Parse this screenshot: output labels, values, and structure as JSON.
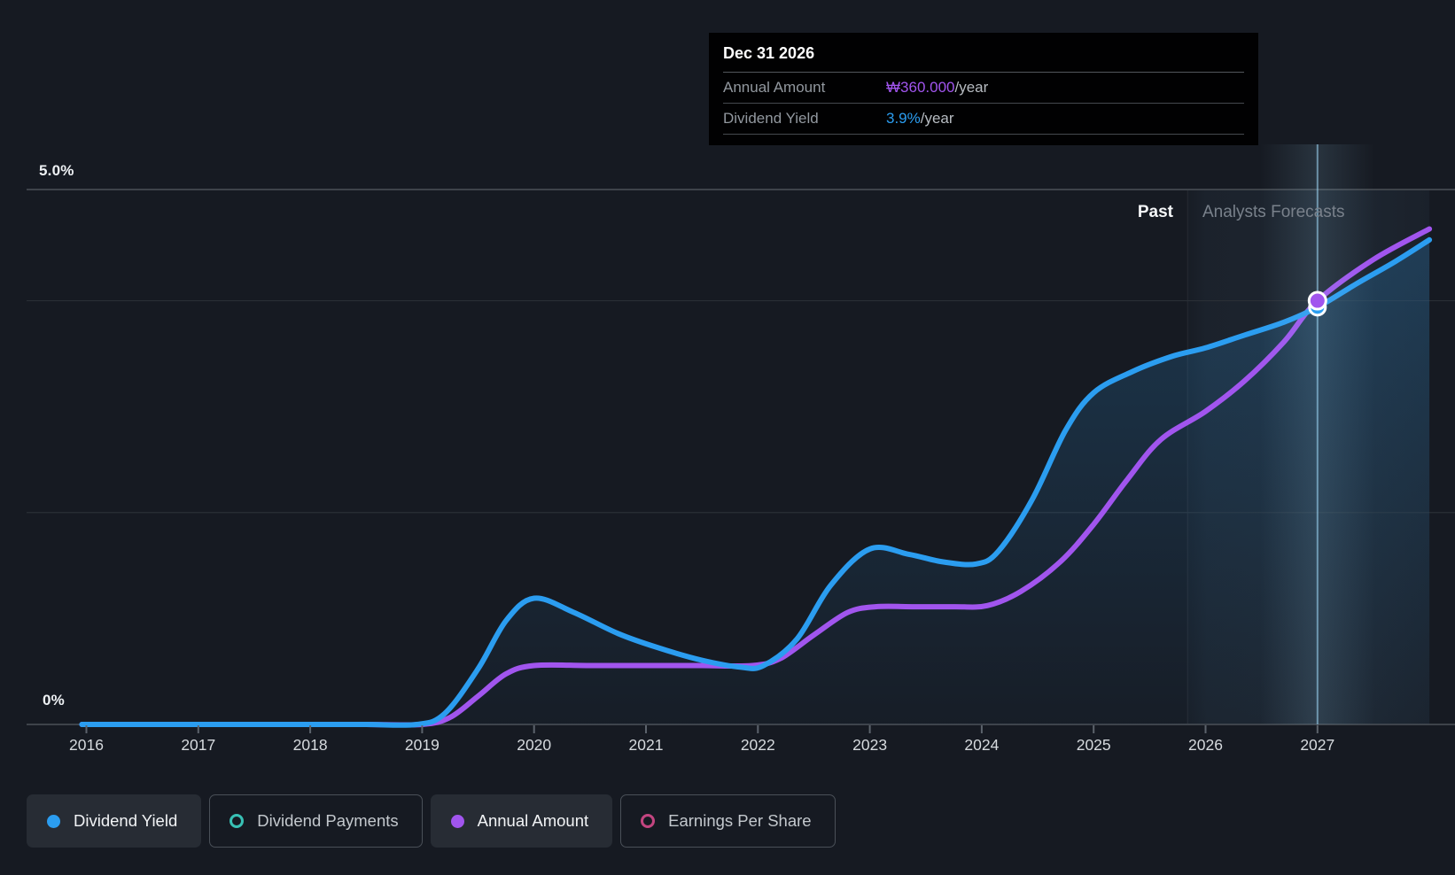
{
  "tooltip": {
    "date": "Dec 31 2026",
    "rows": [
      {
        "label": "Annual Amount",
        "value": "₩360.000",
        "suffix": "/year",
        "color": "#a155ee"
      },
      {
        "label": "Dividend Yield",
        "value": "3.9%",
        "suffix": "/year",
        "color": "#2b9df0"
      }
    ]
  },
  "regions": {
    "past_label": "Past",
    "forecast_label": "Analysts Forecasts"
  },
  "axis": {
    "y_top_label": "5.0%",
    "y_bottom_label": "0%",
    "x_labels": [
      "2016",
      "2017",
      "2018",
      "2019",
      "2020",
      "2021",
      "2022",
      "2023",
      "2024",
      "2025",
      "2026",
      "2027"
    ]
  },
  "legend": [
    {
      "label": "Dividend Yield",
      "color": "#2b9df0",
      "active": true
    },
    {
      "label": "Dividend Payments",
      "color": "#38c1b5",
      "active": false
    },
    {
      "label": "Annual Amount",
      "color": "#a155ee",
      "active": true
    },
    {
      "label": "Earnings Per Share",
      "color": "#c34580",
      "active": false
    }
  ],
  "colors": {
    "background": "#161a22",
    "grid_strong": "#3e434a",
    "grid_faint": "#2a2f36",
    "tick": "#5c636c",
    "hover_line": "#9bd2f0",
    "area_fill_base": "#2d86c6",
    "forecast_band": "#6ea5cd"
  },
  "chart_data": {
    "type": "line",
    "title": "Dividend yield history and analysts forecast",
    "x_axis": {
      "ticks": [
        2016,
        2017,
        2018,
        2019,
        2020,
        2021,
        2022,
        2023,
        2024,
        2025,
        2026,
        2027
      ],
      "range": [
        2015.96,
        2028
      ]
    },
    "y_axis_percent": {
      "range": [
        0,
        5
      ],
      "labeled_ticks": [
        "5.0%",
        "0%"
      ]
    },
    "gridlines": [
      {
        "axis": "percent",
        "value": 5
      },
      {
        "axis": "won",
        "value": 360
      },
      {
        "axis": "won",
        "value": 180
      },
      {
        "axis": "percent",
        "value": 0
      }
    ],
    "forecast_start_year": 2025.84,
    "hover_year": 2027,
    "marker": {
      "date": "Dec 31 2026",
      "dividend_yield_percent": 3.9,
      "annual_amount_won": 360
    },
    "legend_position": "bottom",
    "series": [
      {
        "name": "Dividend Yield",
        "axis": "percent",
        "unit": "%",
        "color": "#2b9df0",
        "points": [
          [
            2015.96,
            0
          ],
          [
            2016.5,
            0
          ],
          [
            2017,
            0
          ],
          [
            2017.5,
            0
          ],
          [
            2018,
            0
          ],
          [
            2018.5,
            0
          ],
          [
            2018.95,
            0
          ],
          [
            2019.2,
            0.1
          ],
          [
            2019.5,
            0.52
          ],
          [
            2019.75,
            0.97
          ],
          [
            2020,
            1.18
          ],
          [
            2020.35,
            1.05
          ],
          [
            2020.75,
            0.85
          ],
          [
            2021.1,
            0.72
          ],
          [
            2021.5,
            0.6
          ],
          [
            2021.85,
            0.535
          ],
          [
            2022.05,
            0.55
          ],
          [
            2022.35,
            0.8
          ],
          [
            2022.65,
            1.3
          ],
          [
            2023,
            1.64
          ],
          [
            2023.35,
            1.59
          ],
          [
            2023.65,
            1.52
          ],
          [
            2023.95,
            1.5
          ],
          [
            2024.15,
            1.62
          ],
          [
            2024.45,
            2.1
          ],
          [
            2024.75,
            2.75
          ],
          [
            2025,
            3.1
          ],
          [
            2025.35,
            3.3
          ],
          [
            2025.7,
            3.44
          ],
          [
            2026,
            3.52
          ],
          [
            2026.35,
            3.64
          ],
          [
            2026.7,
            3.76
          ],
          [
            2027,
            3.9
          ],
          [
            2027.35,
            4.12
          ],
          [
            2027.7,
            4.33
          ],
          [
            2028,
            4.53
          ]
        ]
      },
      {
        "name": "Annual Amount",
        "axis": "won",
        "unit": "₩ (thousands, as ₩360.000)",
        "color": "#a155ee",
        "points": [
          [
            2015.96,
            0
          ],
          [
            2016.5,
            0
          ],
          [
            2017,
            0
          ],
          [
            2017.5,
            0
          ],
          [
            2018,
            0
          ],
          [
            2018.5,
            0
          ],
          [
            2019,
            0
          ],
          [
            2019.25,
            6
          ],
          [
            2019.5,
            24
          ],
          [
            2019.75,
            43
          ],
          [
            2020,
            50
          ],
          [
            2020.5,
            50
          ],
          [
            2021,
            50
          ],
          [
            2021.5,
            50
          ],
          [
            2021.95,
            50
          ],
          [
            2022.2,
            56
          ],
          [
            2022.5,
            76
          ],
          [
            2022.8,
            95
          ],
          [
            2023.05,
            100
          ],
          [
            2023.4,
            100
          ],
          [
            2023.75,
            100
          ],
          [
            2024.05,
            101
          ],
          [
            2024.35,
            113
          ],
          [
            2024.7,
            138
          ],
          [
            2025,
            170
          ],
          [
            2025.3,
            208
          ],
          [
            2025.6,
            242
          ],
          [
            2026,
            266
          ],
          [
            2026.35,
            292
          ],
          [
            2026.7,
            325
          ],
          [
            2027,
            360
          ],
          [
            2027.5,
            395
          ],
          [
            2028,
            421
          ]
        ]
      }
    ]
  }
}
